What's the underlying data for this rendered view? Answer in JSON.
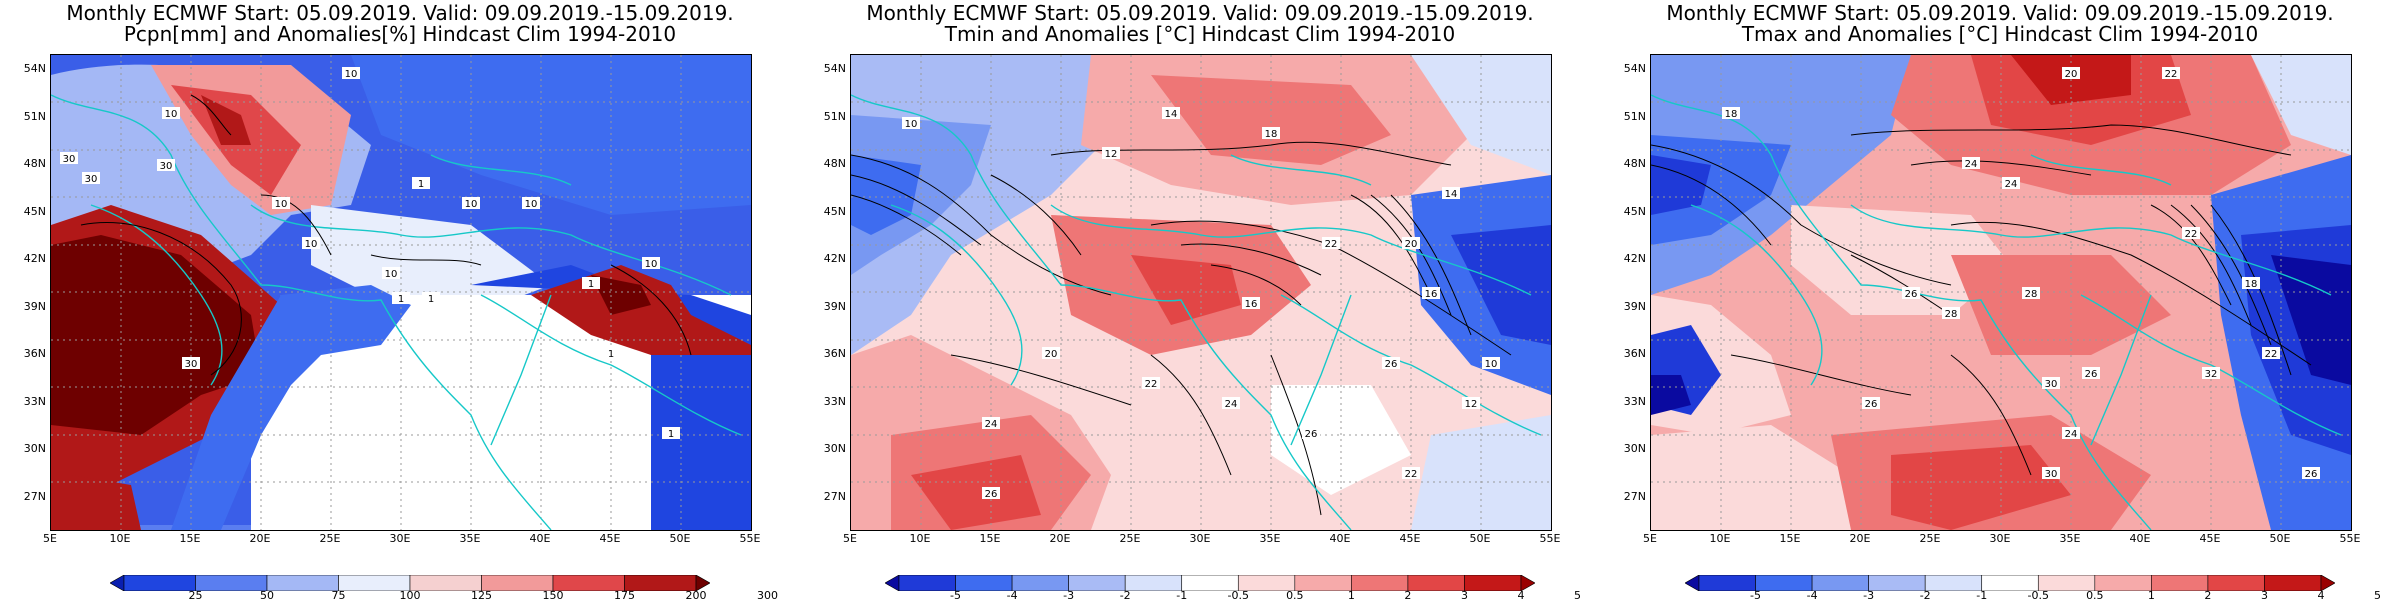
{
  "panels": [
    {
      "title1": "Monthly ECMWF Start: 05.09.2019. Valid: 09.09.2019.-15.09.2019.",
      "title2": "Pcpn[mm] and Anomalies[%] Hindcast Clim 1994-2010",
      "colorbar_labels": [
        "25",
        "50",
        "75",
        "100",
        "125",
        "150",
        "175",
        "200",
        "300"
      ],
      "colorbar_colors": [
        "#0a1fb0",
        "#1f45e0",
        "#5a7ef0",
        "#a4b8f5",
        "#e8eefc",
        "#f5d0d0",
        "#f29a9a",
        "#e0474a",
        "#b11818",
        "#6e0000"
      ],
      "contour_labels": [
        "30",
        "30",
        "30",
        "10",
        "10",
        "10",
        "10",
        "10",
        "1",
        "1",
        "1",
        "10",
        "10",
        "30",
        "1",
        "1",
        "10",
        "1"
      ]
    },
    {
      "title1": "Monthly ECMWF Start: 05.09.2019. Valid: 09.09.2019.-15.09.2019.",
      "title2": "Tmin and Anomalies [°C] Hindcast Clim 1994-2010",
      "colorbar_labels": [
        "-5",
        "-4",
        "-3",
        "-2",
        "-1",
        "-0.5",
        "0.5",
        "1",
        "2",
        "3",
        "4",
        "5"
      ],
      "colorbar_colors": [
        "#0a0aa0",
        "#1f3ad8",
        "#3e6cf0",
        "#7898f2",
        "#a9bbf5",
        "#d8e2fb",
        "#ffffff",
        "#fbdada",
        "#f6aaaa",
        "#ee7676",
        "#e24646",
        "#c41818",
        "#9a0000"
      ],
      "contour_labels": [
        "10",
        "12",
        "14",
        "18",
        "22",
        "26",
        "24",
        "26",
        "20",
        "16",
        "14",
        "10",
        "12",
        "16",
        "20",
        "22",
        "24",
        "26",
        "22"
      ]
    },
    {
      "title1": "Monthly ECMWF Start: 05.09.2019. Valid: 09.09.2019.-15.09.2019.",
      "title2": "Tmax and Anomalies [°C] Hindcast Clim 1994-2010",
      "colorbar_labels": [
        "-5",
        "-4",
        "-3",
        "-2",
        "-1",
        "-0.5",
        "0.5",
        "1",
        "2",
        "3",
        "4",
        "5"
      ],
      "colorbar_colors": [
        "#0a0aa0",
        "#1f3ad8",
        "#3e6cf0",
        "#7898f2",
        "#a9bbf5",
        "#d8e2fb",
        "#ffffff",
        "#fbdada",
        "#f6aaaa",
        "#ee7676",
        "#e24646",
        "#c41818",
        "#9a0000"
      ],
      "contour_labels": [
        "20",
        "22",
        "18",
        "24",
        "24",
        "22",
        "26",
        "28",
        "30",
        "28",
        "26",
        "24",
        "18",
        "22",
        "26",
        "30",
        "32",
        "26"
      ]
    }
  ],
  "lat_labels": [
    "54N",
    "51N",
    "48N",
    "45N",
    "42N",
    "39N",
    "36N",
    "33N",
    "30N",
    "27N"
  ],
  "lon_labels": [
    "5E",
    "10E",
    "15E",
    "20E",
    "25E",
    "30E",
    "35E",
    "40E",
    "45E",
    "50E",
    "55E"
  ]
}
